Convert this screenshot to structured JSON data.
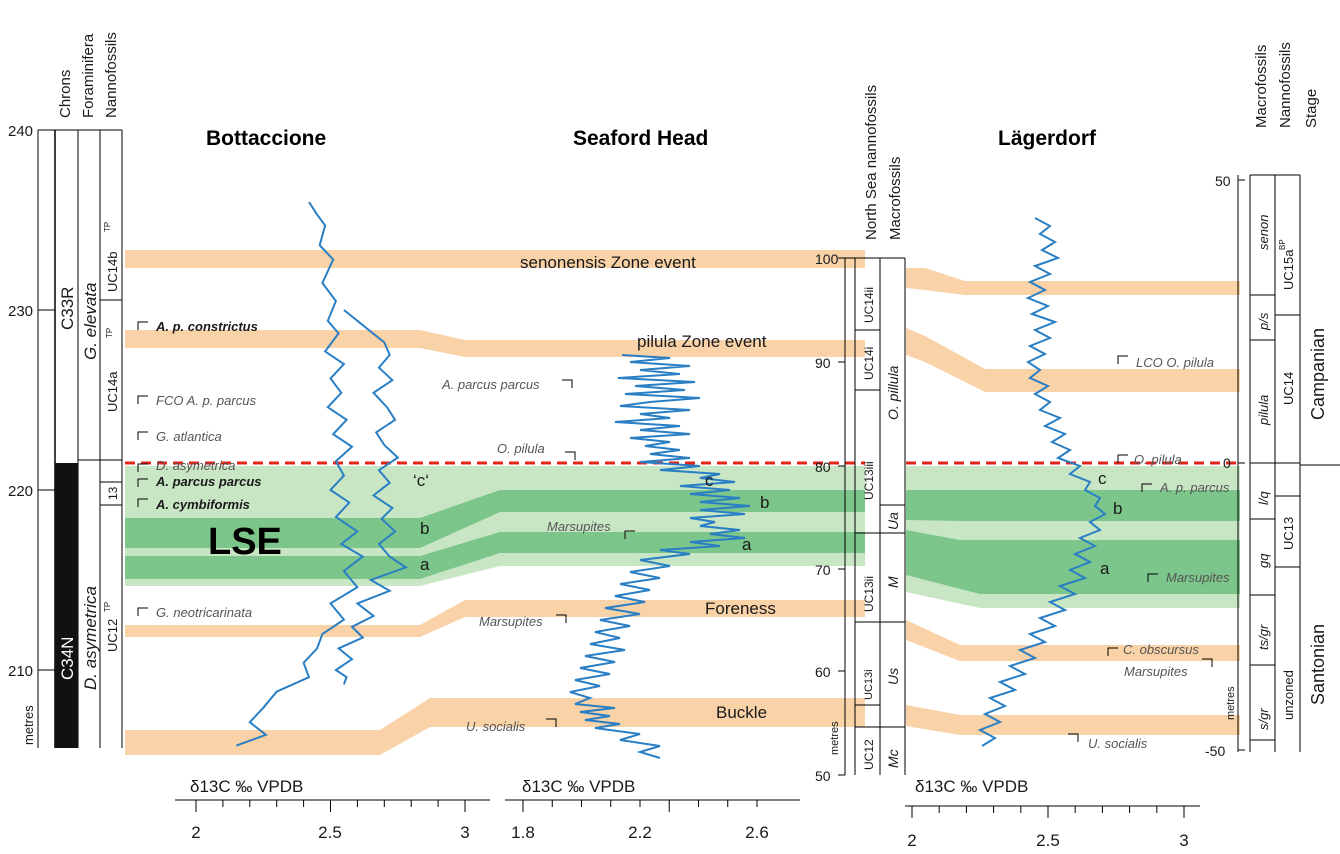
{
  "chart_data": {
    "type": "line",
    "colors": {
      "orange_band": "#f9d2a8",
      "green_dark": "#7dc68b",
      "green_light": "#c8e6c4",
      "curve": "#2a7fc4",
      "red_line": "#e2231a"
    },
    "headers": {
      "left": [
        "Chrons",
        "Foraminifera",
        "Nannofossils"
      ],
      "mid": [
        "North Sea nannofossils",
        "Macrofossils"
      ],
      "right": [
        "Macrofossils",
        "Nannofossils",
        "Stage"
      ]
    },
    "sites": [
      "Bottaccione",
      "Seaford Head",
      "Lägerdorf"
    ],
    "axes": {
      "bottaccione_depth": {
        "ticks": [
          "240",
          "230",
          "220",
          "210"
        ],
        "unit": "metres"
      },
      "seaford_depth": {
        "ticks": [
          "100",
          "90",
          "80",
          "70",
          "60",
          "50"
        ],
        "unit": "metres"
      },
      "lagerdorf_depth": {
        "ticks": [
          "50",
          "0",
          "-50"
        ],
        "unit": "metres"
      },
      "x_bottaccione": {
        "label": "δ13C ‰ VPDB",
        "ticks": [
          "2",
          "2.5",
          "3"
        ]
      },
      "x_seaford": {
        "label": "δ13C ‰ VPDB",
        "ticks": [
          "1.8",
          "2.2",
          "2.6"
        ]
      },
      "x_lagerdorf": {
        "label": "δ13C ‰ VPDB",
        "ticks": [
          "2",
          "2.5",
          "3"
        ]
      }
    },
    "chrons": [
      "C33R",
      "C34N"
    ],
    "forams": [
      "G. elevata",
      "D. asymetrica"
    ],
    "nanno_left": [
      "UC14b",
      "TP",
      "UC14a",
      "13",
      "UC12"
    ],
    "nanno_sup": "TP",
    "north_sea_nanno": [
      "UC14ii",
      "UC14i",
      "UC13iii",
      "UC13ii",
      "UC13i",
      "UC12"
    ],
    "macro_mid": [
      "O. pillula",
      "Ua",
      "M",
      "Us",
      "Mc"
    ],
    "right_macro": [
      "senon",
      "p/s",
      "pilula",
      "l/q",
      "gq",
      "ts/gr",
      "s/gr"
    ],
    "right_nanno": [
      "UC15a",
      "BP",
      "UC14",
      "UC13",
      "unzoned"
    ],
    "stages": [
      "Campanian",
      "Santonian"
    ],
    "events": [
      "senonensis Zone event",
      "pilula Zone event",
      "Foreness",
      "Buckle",
      "LSE"
    ],
    "peaks": {
      "a": "a",
      "b": "b",
      "c": "c",
      "c_quoted": "‘c‘"
    },
    "biohorizons_bottaccione": [
      "A. p. constrictus",
      "FCO A. p. parcus",
      "G. atlantica",
      "D. asymetrica",
      "A. parcus parcus",
      "A. cymbiformis",
      "G. neotricarinata"
    ],
    "biohorizons_seaford": [
      "A. parcus parcus",
      "O. pilula",
      "Marsupites",
      "Marsupites",
      "U. socialis"
    ],
    "biohorizons_lagerdorf": [
      "LCO O. pilula",
      "O. pilula",
      "A. p. parcus",
      "Marsupites",
      "C. obscursus",
      "Marsupites",
      "U. socialis"
    ],
    "series": [
      {
        "x": [
          2.42,
          2.45,
          2.48,
          2.46,
          2.51,
          2.47,
          2.52,
          2.49,
          2.53,
          2.48,
          2.55,
          2.5,
          2.54,
          2.49,
          2.56,
          2.51,
          2.58,
          2.52,
          2.55,
          2.5,
          2.57,
          2.52,
          2.6,
          2.54,
          2.62,
          2.55,
          2.6,
          2.5,
          2.55,
          2.47,
          2.45,
          2.4,
          2.42,
          2.3,
          2.25,
          2.2,
          2.26,
          2.15
        ],
        "y": [
          236,
          235.3,
          234.7,
          233.6,
          232.8,
          231.5,
          230.5,
          229.4,
          228.7,
          227.7,
          227,
          226.2,
          225.4,
          224.6,
          223.9,
          223.1,
          222.4,
          221.6,
          220.8,
          220,
          219.3,
          218.5,
          217.7,
          217.0,
          216.3,
          215.5,
          214.6,
          213.7,
          212.8,
          212,
          211.2,
          210.4,
          209.6,
          208.8,
          207.9,
          207.1,
          206.4,
          205.8
        ]
      },
      {
        "x": [
          2.55,
          2.6,
          2.65,
          2.7,
          2.72,
          2.68,
          2.73,
          2.66,
          2.71,
          2.74,
          2.67,
          2.7,
          2.75,
          2.68,
          2.72,
          2.66,
          2.73,
          2.69,
          2.74,
          2.68,
          2.72,
          2.78,
          2.65,
          2.72,
          2.6,
          2.66,
          2.58,
          2.62,
          2.53,
          2.58,
          2.52,
          2.56,
          2.55
        ],
        "y": [
          230,
          229.4,
          228.8,
          228.2,
          227.5,
          226.8,
          226.1,
          225.4,
          224.6,
          223.9,
          223.2,
          222.5,
          221.8,
          221.1,
          220.4,
          219.7,
          219,
          218.4,
          217.7,
          217,
          216.3,
          215.7,
          215,
          214.4,
          213.7,
          213,
          212.4,
          211.8,
          211.2,
          210.6,
          210,
          209.6,
          209.2
        ]
      }
    ]
  }
}
